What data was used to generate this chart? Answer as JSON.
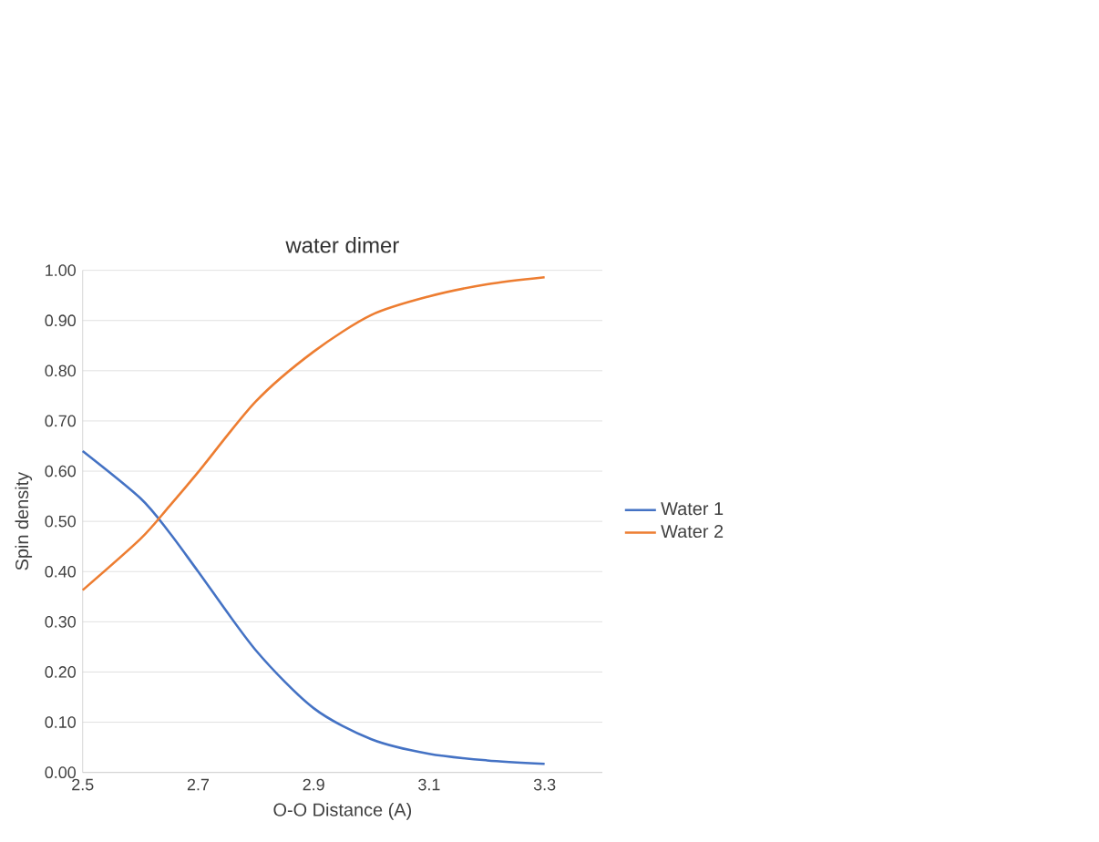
{
  "chart_data": {
    "type": "line",
    "title": "water dimer",
    "xlabel": "O-O Distance (A)",
    "ylabel": "Spin density",
    "x": [
      2.5,
      2.6,
      2.65,
      2.7,
      2.8,
      2.9,
      3.0,
      3.1,
      3.2,
      3.3
    ],
    "series": [
      {
        "name": "Water 1",
        "color": "#4472c4",
        "values": [
          0.64,
          0.546,
          0.478,
          0.4,
          0.243,
          0.128,
          0.066,
          0.037,
          0.024,
          0.017
        ]
      },
      {
        "name": "Water 2",
        "color": "#ed7d31",
        "values": [
          0.363,
          0.465,
          0.53,
          0.598,
          0.739,
          0.838,
          0.911,
          0.948,
          0.972,
          0.986
        ]
      }
    ],
    "xlim": [
      2.5,
      3.4
    ],
    "ylim": [
      0,
      1.0
    ],
    "xticks": [
      2.5,
      2.7,
      2.9,
      3.1,
      3.3
    ],
    "yticks": [
      {
        "value": 0,
        "label": "0.00"
      },
      {
        "value": 0.1,
        "label": "0.10"
      },
      {
        "value": 0.2,
        "label": "0.20"
      },
      {
        "value": 0.3,
        "label": "0.30"
      },
      {
        "value": 0.4,
        "label": "0.40"
      },
      {
        "value": 0.5,
        "label": "0.50"
      },
      {
        "value": 0.6,
        "label": "0.60"
      },
      {
        "value": 0.7,
        "label": "0.70"
      },
      {
        "value": 0.8,
        "label": "0.80"
      },
      {
        "value": 0.9,
        "label": "0.90"
      },
      {
        "value": 1.0,
        "label": "1.00"
      }
    ],
    "grid": "y",
    "legend": "right",
    "marker": "none",
    "line_style": "solid"
  }
}
